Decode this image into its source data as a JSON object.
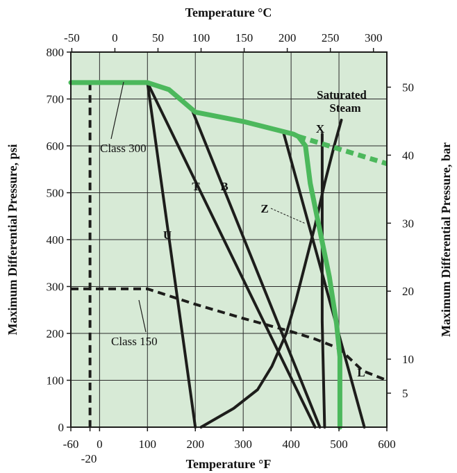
{
  "chart_data": {
    "type": "line",
    "bottom_axis": {
      "title": "Temperature °F",
      "range": [
        -60,
        600
      ],
      "ticks": [
        "-60",
        "0",
        "100",
        "200",
        "300",
        "400",
        "500",
        "600"
      ],
      "extra_label": "-20"
    },
    "top_axis": {
      "title": "Temperature °C",
      "range": [
        -51.1,
        315.6
      ],
      "ticks": [
        "-50",
        "0",
        "50",
        "100",
        "150",
        "200",
        "250",
        "300"
      ]
    },
    "left_axis": {
      "title": "Maximum Differential Pressure, psi",
      "range": [
        0,
        800
      ],
      "ticks": [
        "0",
        "100",
        "200",
        "300",
        "400",
        "500",
        "600",
        "700",
        "800"
      ]
    },
    "right_axis": {
      "title": "Maximum Differential Pressure, bar",
      "ticks": [
        "5",
        "10",
        "20",
        "30",
        "40",
        "50"
      ]
    },
    "grid": true,
    "background_color": "#d7ead6",
    "series_colors": {
      "green": "#4cb85c",
      "black": "#1d1d1b"
    },
    "series": [
      {
        "name": "Class 300",
        "color": "green",
        "style": "solid",
        "points": [
          [
            -60,
            735
          ],
          [
            100,
            735
          ],
          [
            145,
            720
          ],
          [
            200,
            672
          ],
          [
            300,
            652
          ],
          [
            405,
            625
          ],
          [
            415,
            620
          ],
          [
            430,
            600
          ],
          [
            440,
            520
          ],
          [
            460,
            420
          ],
          [
            480,
            320
          ],
          [
            495,
            220
          ],
          [
            502,
            150
          ],
          [
            502,
            0
          ]
        ]
      },
      {
        "name": "X",
        "color": "green",
        "style": "dashed",
        "points": [
          [
            415,
            620
          ],
          [
            600,
            562
          ]
        ]
      },
      {
        "name": "Class 150",
        "color": "black",
        "style": "dashed",
        "points": [
          [
            -60,
            295
          ],
          [
            100,
            295
          ],
          [
            200,
            262
          ],
          [
            300,
            232
          ],
          [
            400,
            204
          ],
          [
            450,
            188
          ],
          [
            500,
            168
          ],
          [
            550,
            120
          ],
          [
            600,
            100
          ]
        ]
      },
      {
        "name": "-20 °F limit",
        "color": "black",
        "style": "dashed",
        "points": [
          [
            -20,
            735
          ],
          [
            -20,
            0
          ]
        ]
      },
      {
        "name": "U",
        "color": "black",
        "style": "solid",
        "points": [
          [
            100,
            735
          ],
          [
            200,
            0
          ]
        ]
      },
      {
        "name": "T",
        "color": "black",
        "style": "solid",
        "points": [
          [
            100,
            735
          ],
          [
            450,
            0
          ]
        ]
      },
      {
        "name": "B",
        "color": "black",
        "style": "solid",
        "points": [
          [
            195,
            672
          ],
          [
            460,
            0
          ]
        ]
      },
      {
        "name": "L",
        "color": "black",
        "style": "solid",
        "points": [
          [
            385,
            625
          ],
          [
            553,
            0
          ]
        ]
      },
      {
        "name": "Z",
        "color": "black",
        "style": "solid",
        "points": [
          [
            465,
            625
          ],
          [
            465,
            225
          ],
          [
            470,
            0
          ]
        ]
      },
      {
        "name": "Saturated Steam",
        "color": "black",
        "style": "solid",
        "points": [
          [
            212,
            0
          ],
          [
            280,
            40
          ],
          [
            330,
            80
          ],
          [
            360,
            130
          ],
          [
            390,
            200
          ],
          [
            410,
            270
          ],
          [
            430,
            350
          ],
          [
            450,
            430
          ],
          [
            470,
            520
          ],
          [
            490,
            600
          ],
          [
            505,
            655
          ]
        ]
      }
    ],
    "annotations": {
      "class_300": "Class 300",
      "class_150": "Class 150",
      "saturated_line1": "Saturated",
      "saturated_line2": "Steam",
      "x": "X",
      "t": "T",
      "b": "B",
      "u": "U",
      "z": "Z",
      "l": "L"
    }
  }
}
